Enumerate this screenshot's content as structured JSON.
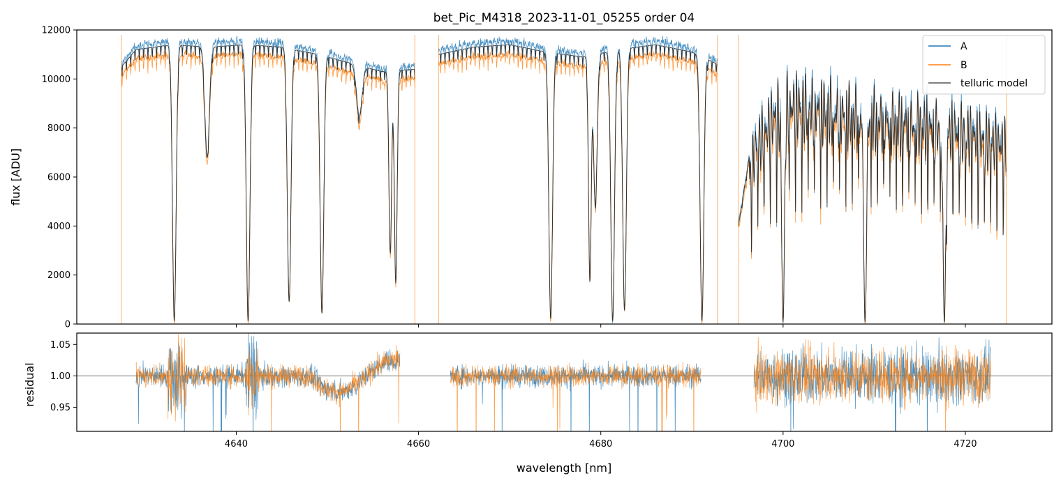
{
  "chart_data": [
    {
      "type": "line",
      "panel": "top",
      "title": "bet_Pic_M4318_2023-11-01_05255  order 04",
      "xlabel": "",
      "ylabel": "flux [ADU]",
      "xlim": [
        4622.5,
        4729.5
      ],
      "ylim": [
        0,
        12000
      ],
      "yticks": [
        0,
        2000,
        4000,
        6000,
        8000,
        10000,
        12000
      ],
      "ytick_labels": [
        "0",
        "2000",
        "4000",
        "6000",
        "8000",
        "10000",
        "12000"
      ],
      "xticks": [
        4640,
        4660,
        4680,
        4700,
        4720
      ],
      "legend": {
        "location": "upper right",
        "entries": [
          {
            "label": "A",
            "color": "#1f77b4"
          },
          {
            "label": "B",
            "color": "#ff7f0e"
          },
          {
            "label": "telluric model",
            "color": "#555555"
          }
        ]
      },
      "segments": [
        [
          4627.4,
          4659.6
        ],
        [
          4662.2,
          4692.8
        ],
        [
          4695.1,
          4724.5
        ]
      ],
      "continuum": [
        [
          4627.4,
          10500
        ],
        [
          4629,
          11200
        ],
        [
          4633,
          11400
        ],
        [
          4637,
          11300
        ],
        [
          4641,
          11400
        ],
        [
          4645,
          11300
        ],
        [
          4649,
          11000
        ],
        [
          4653,
          10600
        ],
        [
          4656,
          10300
        ],
        [
          4659.6,
          10400
        ],
        [
          4662.2,
          11000
        ],
        [
          4666,
          11300
        ],
        [
          4670,
          11400
        ],
        [
          4674,
          11100
        ],
        [
          4678,
          10900
        ],
        [
          4682,
          11200
        ],
        [
          4686,
          11400
        ],
        [
          4690,
          11100
        ],
        [
          4692.8,
          10600
        ],
        [
          4695.1,
          4000
        ],
        [
          4697,
          8500
        ],
        [
          4700,
          10500
        ],
        [
          4705,
          10200
        ],
        [
          4710,
          9800
        ],
        [
          4715,
          9500
        ],
        [
          4720,
          9100
        ],
        [
          4724.5,
          8500
        ]
      ],
      "lines": [
        {
          "center": 4633.2,
          "depth": 0.99,
          "width": 0.2
        },
        {
          "center": 4636.8,
          "depth": 0.4,
          "width": 0.25
        },
        {
          "center": 4641.3,
          "depth": 0.99,
          "width": 0.2
        },
        {
          "center": 4645.8,
          "depth": 0.92,
          "width": 0.2
        },
        {
          "center": 4649.4,
          "depth": 0.96,
          "width": 0.2
        },
        {
          "center": 4653.5,
          "depth": 0.2,
          "width": 0.3
        },
        {
          "center": 4656.9,
          "depth": 0.72,
          "width": 0.15
        },
        {
          "center": 4657.5,
          "depth": 0.84,
          "width": 0.15
        },
        {
          "center": 4674.5,
          "depth": 0.98,
          "width": 0.2
        },
        {
          "center": 4678.8,
          "depth": 0.84,
          "width": 0.15
        },
        {
          "center": 4679.4,
          "depth": 0.56,
          "width": 0.2
        },
        {
          "center": 4681.3,
          "depth": 0.99,
          "width": 0.2
        },
        {
          "center": 4682.6,
          "depth": 0.95,
          "width": 0.2
        },
        {
          "center": 4691.1,
          "depth": 0.99,
          "width": 0.2
        },
        {
          "center": 4700.0,
          "depth": 0.99,
          "width": 0.15
        },
        {
          "center": 4709.0,
          "depth": 0.99,
          "width": 0.15
        },
        {
          "center": 4717.7,
          "depth": 0.99,
          "width": 0.15
        }
      ]
    },
    {
      "type": "line",
      "panel": "bottom",
      "xlabel": "wavelength [nm]",
      "ylabel": "residual",
      "xlim": [
        4622.5,
        4729.5
      ],
      "ylim": [
        0.912,
        1.068
      ],
      "yticks": [
        0.95,
        1.0,
        1.05
      ],
      "ytick_labels": [
        "0.95",
        "1.00",
        "1.05"
      ],
      "xticks": [
        4640,
        4660,
        4680,
        4700,
        4720
      ],
      "xtick_labels": [
        "4640",
        "4660",
        "4680",
        "4700",
        "4720"
      ],
      "reference_line": 1.0,
      "series": [
        {
          "name": "A",
          "color": "#1f77b4"
        },
        {
          "name": "B",
          "color": "#ff7f0e"
        }
      ],
      "segments": [
        [
          4629.0,
          4658.0
        ],
        [
          4663.5,
          4691.0
        ],
        [
          4696.8,
          4722.8
        ]
      ]
    }
  ]
}
